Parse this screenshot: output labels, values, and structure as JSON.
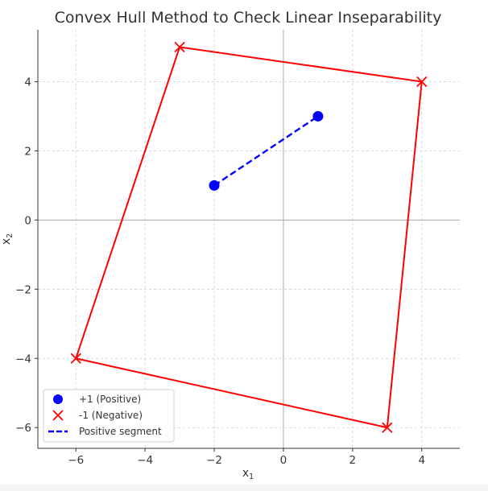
{
  "chart_data": {
    "type": "scatter",
    "title": "Convex Hull Method to Check Linear Inseparability",
    "xlabel": "x",
    "xlabel_sub": "1",
    "ylabel": "x",
    "ylabel_sub": "2",
    "xlim": [
      -7.1,
      5.1
    ],
    "ylim": [
      -6.6,
      5.5
    ],
    "xticks": [
      -6,
      -4,
      -2,
      0,
      2,
      4
    ],
    "yticks": [
      -6,
      -4,
      -2,
      0,
      2,
      4
    ],
    "tick_labels_x": [
      "−6",
      "−4",
      "−2",
      "0",
      "2",
      "4"
    ],
    "tick_labels_y": [
      "−6",
      "−4",
      "−2",
      "0",
      "2",
      "4"
    ],
    "grid": true,
    "legend_position": "lower-left",
    "series": [
      {
        "name": "+1 (Positive)",
        "kind": "points",
        "marker": "circle",
        "color": "#0000ff",
        "points": [
          [
            -2,
            1
          ],
          [
            1,
            3
          ]
        ]
      },
      {
        "name": "-1 (Negative)",
        "kind": "points",
        "marker": "x",
        "color": "#ff0000",
        "points": [
          [
            -3,
            5
          ],
          [
            4,
            4
          ],
          [
            3,
            -6
          ],
          [
            -6,
            -4
          ]
        ]
      },
      {
        "name": "Positive segment",
        "kind": "line",
        "style": "dashed",
        "color": "#0000ff",
        "points": [
          [
            -2,
            1
          ],
          [
            1,
            3
          ]
        ]
      }
    ],
    "hull": {
      "color": "#ff0000",
      "points": [
        [
          -3,
          5
        ],
        [
          4,
          4
        ],
        [
          3,
          -6
        ],
        [
          -6,
          -4
        ],
        [
          -3,
          5
        ]
      ]
    }
  }
}
